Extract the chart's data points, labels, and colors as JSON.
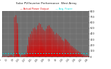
{
  "title": "Solar PV/Inverter Performance  West Array",
  "legend_actual": "Actual Power Output",
  "legend_avg": "Avg. Power",
  "bg_color": "#ffffff",
  "plot_bg_color": "#888888",
  "bar_color": "#dd0000",
  "avg_line_color": "#00dddd",
  "grid_color": "#aaaaaa",
  "title_color": "#333333",
  "actual_color": "#cc0000",
  "ylim": [
    0,
    800
  ],
  "ytick_labels": [
    "8__",
    "7__",
    "6__",
    "5__",
    "4__",
    "3__",
    "2__",
    "1__",
    "~5"
  ],
  "ytick_values": [
    800,
    700,
    600,
    500,
    400,
    300,
    200,
    100,
    0
  ],
  "avg_value": 55,
  "num_days": 60,
  "samples_per_day": 12
}
